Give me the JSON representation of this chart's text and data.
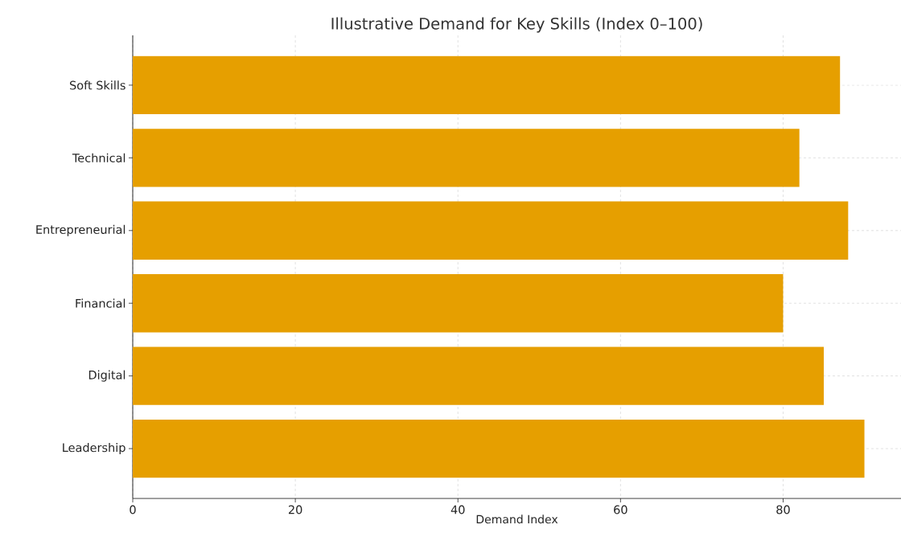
{
  "chart_data": {
    "type": "bar",
    "orientation": "horizontal",
    "title": "Illustrative Demand for Key Skills (Index 0–100)",
    "xlabel": "Demand Index",
    "categories": [
      "Soft Skills",
      "Technical",
      "Entrepreneurial",
      "Financial",
      "Digital",
      "Leadership"
    ],
    "values": [
      87,
      82,
      88,
      80,
      85,
      90
    ],
    "color": "#e69f00",
    "xlim": [
      0,
      94.5
    ],
    "xticks": [
      0,
      20,
      40,
      60,
      80
    ],
    "grid": true
  }
}
